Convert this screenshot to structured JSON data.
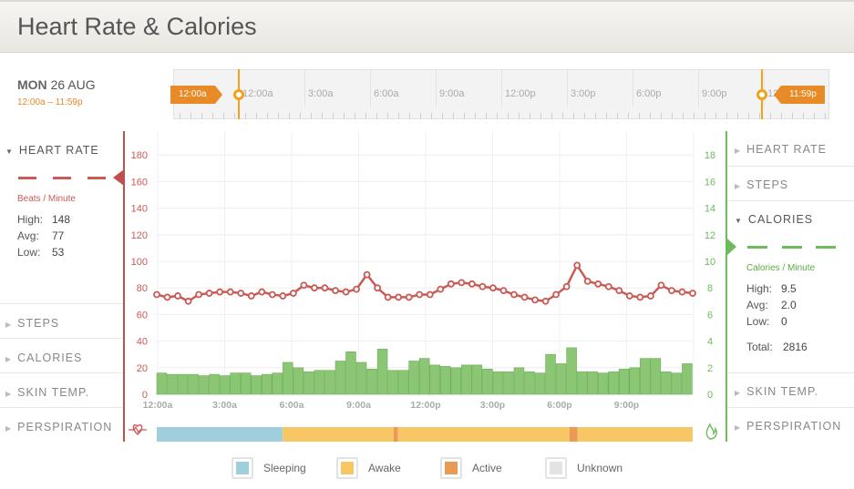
{
  "header": {
    "title": "Heart Rate & Calories"
  },
  "date": {
    "day": "MON",
    "date": "26 AUG",
    "range": "12:00a – 11:59p"
  },
  "timeline": {
    "labels": [
      "12:00a",
      "3:00a",
      "6:00a",
      "9:00a",
      "12:00p",
      "3:00p",
      "6:00p",
      "9:00p",
      "12"
    ],
    "start_tag": "12:00a",
    "end_tag": "11:59p"
  },
  "left_panel": {
    "heart_rate": {
      "label": "HEART RATE",
      "unit": "Beats / Minute",
      "high_label": "High:",
      "high": "148",
      "avg_label": "Avg:",
      "avg": "77",
      "low_label": "Low:",
      "low": "53"
    },
    "steps": "STEPS",
    "calories": "CALORIES",
    "skin_temp": "SKIN TEMP.",
    "perspiration": "PERSPIRATION"
  },
  "right_panel": {
    "heart_rate": "HEART RATE",
    "steps": "STEPS",
    "calories": {
      "label": "CALORIES",
      "unit": "Calories / Minute",
      "high_label": "High:",
      "high": "9.5",
      "avg_label": "Avg:",
      "avg": "2.0",
      "low_label": "Low:",
      "low": "0",
      "total_label": "Total:",
      "total": "2816"
    },
    "skin_temp": "SKIN TEMP.",
    "perspiration": "PERSPIRATION"
  },
  "legend": {
    "sleeping": "Sleeping",
    "awake": "Awake",
    "active": "Active",
    "unknown": "Unknown"
  },
  "colors": {
    "heart": "#c95a55",
    "calories": "#8bc674",
    "sleeping": "#9fcfdb",
    "awake": "#f7c765",
    "active": "#e99a57",
    "unknown": "#e3e3e3",
    "accent": "#e88a26"
  },
  "icons": {
    "heart_axis": "heart-pulse-icon",
    "calorie_axis": "flame-icon",
    "collapsed": "triangle-right-icon",
    "expanded": "triangle-down-icon"
  },
  "chart_data": {
    "type": "line+bar",
    "x_tick_labels": [
      "12:00a",
      "3:00a",
      "6:00a",
      "9:00a",
      "12:00p",
      "3:00p",
      "6:00p",
      "9:00p"
    ],
    "left_axis": {
      "ticks": [
        0,
        20,
        40,
        60,
        80,
        100,
        120,
        140,
        160,
        180
      ],
      "ylim": [
        0,
        200
      ]
    },
    "right_axis": {
      "ticks": [
        0,
        2,
        4,
        6,
        8,
        10,
        12,
        14,
        16,
        18
      ],
      "ylim": [
        0,
        20
      ]
    },
    "heart_rate": [
      75,
      73,
      74,
      70,
      75,
      76,
      77,
      77,
      76,
      74,
      77,
      75,
      74,
      76,
      82,
      80,
      80,
      78,
      77,
      79,
      90,
      80,
      73,
      73,
      73,
      75,
      75,
      79,
      83,
      84,
      83,
      81,
      80,
      78,
      75,
      73,
      71,
      70,
      75,
      81,
      97,
      85,
      83,
      81,
      78,
      74,
      73,
      74,
      82,
      78,
      77,
      76
    ],
    "calories": [
      1.6,
      1.5,
      1.5,
      1.5,
      1.4,
      1.5,
      1.4,
      1.6,
      1.6,
      1.4,
      1.5,
      1.6,
      2.4,
      2.0,
      1.7,
      1.8,
      1.8,
      2.5,
      3.2,
      2.4,
      1.9,
      3.4,
      1.8,
      1.8,
      2.5,
      2.7,
      2.2,
      2.1,
      2.0,
      2.2,
      2.2,
      1.9,
      1.7,
      1.7,
      2.0,
      1.7,
      1.6,
      3.0,
      2.3,
      3.5,
      1.7,
      1.7,
      1.6,
      1.7,
      1.9,
      2.0,
      2.7,
      2.7,
      1.7,
      1.6,
      2.3
    ],
    "activity_states": [
      {
        "state": "Sleeping",
        "from": 0.0,
        "to": 0.235
      },
      {
        "state": "Awake",
        "from": 0.235,
        "to": 0.442
      },
      {
        "state": "Active",
        "from": 0.442,
        "to": 0.45
      },
      {
        "state": "Awake",
        "from": 0.45,
        "to": 0.77
      },
      {
        "state": "Active",
        "from": 0.77,
        "to": 0.785
      },
      {
        "state": "Awake",
        "from": 0.785,
        "to": 1.0
      }
    ]
  }
}
